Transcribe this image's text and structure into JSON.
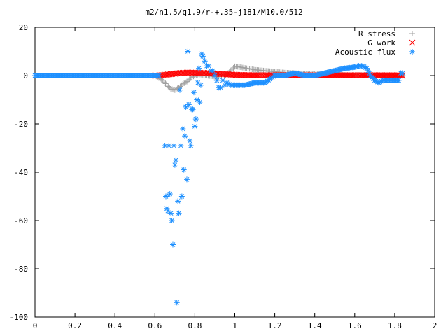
{
  "chart_data": {
    "type": "scatter",
    "title": "m2/n1.5/q1.9/r-+.35-j181/M10.0/512",
    "xlabel": "",
    "ylabel": "",
    "xlim": [
      0,
      2
    ],
    "ylim": [
      -100,
      20
    ],
    "x_ticks": [
      "0",
      "0.2",
      "0.4",
      "0.6",
      "0.8",
      "1",
      "1.2",
      "1.4",
      "1.6",
      "1.8",
      "2"
    ],
    "y_ticks": [
      "20",
      "0",
      "-20",
      "-40",
      "-60",
      "-80",
      "-100"
    ],
    "grid": false,
    "legend_position": "top-right",
    "series": [
      {
        "name": "R stress",
        "marker": "plus",
        "color": "#a0a0a0",
        "x": [
          0.0,
          0.1,
          0.2,
          0.3,
          0.4,
          0.5,
          0.6,
          0.64,
          0.66,
          0.68,
          0.7,
          0.72,
          0.74,
          0.76,
          0.78,
          0.8,
          0.82,
          0.84,
          0.86,
          0.88,
          0.9,
          0.92,
          0.94,
          0.96,
          0.98,
          1.0,
          1.02,
          1.04,
          1.06,
          1.08,
          1.1,
          1.15,
          1.2,
          1.25,
          1.3,
          1.35,
          1.4,
          1.45,
          1.5,
          1.55,
          1.6,
          1.65,
          1.7,
          1.75,
          1.8,
          1.84
        ],
        "y": [
          0,
          0,
          0,
          0,
          0,
          0,
          0,
          -2,
          -4,
          -5.5,
          -6,
          -5,
          -3.5,
          -2.5,
          -1,
          0,
          0.5,
          0.3,
          0,
          -0.2,
          -0.5,
          -0.5,
          0,
          0.5,
          2,
          3.8,
          3.6,
          3.3,
          3.0,
          2.7,
          2.4,
          2.0,
          1.6,
          1.2,
          1.0,
          0.8,
          0.6,
          0.4,
          0.3,
          0.2,
          0.1,
          0.1,
          0,
          0,
          0,
          0
        ]
      },
      {
        "name": "G work",
        "marker": "cross",
        "color": "#ff0000",
        "x": [
          0.6,
          0.62,
          0.64,
          0.66,
          0.68,
          0.7,
          0.72,
          0.74,
          0.76,
          0.78,
          0.8,
          0.82,
          0.84,
          0.86,
          0.88,
          0.9,
          0.92,
          0.94,
          0.96,
          0.98,
          1.0,
          1.03,
          1.06,
          1.09,
          1.12,
          1.15,
          1.18,
          1.21,
          1.24,
          1.27,
          1.3,
          1.33,
          1.36,
          1.39,
          1.42,
          1.45,
          1.48,
          1.51,
          1.54,
          1.57,
          1.6,
          1.63,
          1.66,
          1.69,
          1.72,
          1.75,
          1.78,
          1.81,
          1.84
        ],
        "y": [
          0,
          0,
          0.2,
          0.4,
          0.6,
          0.8,
          1.0,
          1.1,
          1.2,
          1.2,
          1.2,
          1.1,
          1.1,
          1.0,
          0.9,
          0.8,
          0.7,
          0.6,
          0.5,
          0.4,
          0.3,
          0.2,
          0.2,
          0.1,
          0.1,
          0.1,
          0.1,
          0.1,
          0.1,
          0.1,
          0.1,
          0.1,
          0.1,
          0.1,
          0.1,
          0.1,
          0.1,
          0.1,
          0.1,
          0.1,
          0.1,
          0.1,
          0.1,
          0.1,
          0.1,
          0.1,
          0.1,
          0.1,
          0
        ]
      },
      {
        "name": "Acoustic flux",
        "marker": "star",
        "color": "#1e90ff",
        "x": [
          0.0,
          0.05,
          0.1,
          0.15,
          0.2,
          0.25,
          0.3,
          0.35,
          0.4,
          0.45,
          0.5,
          0.55,
          0.6,
          0.62,
          0.65,
          0.655,
          0.66,
          0.665,
          0.67,
          0.675,
          0.68,
          0.685,
          0.69,
          0.695,
          0.7,
          0.705,
          0.71,
          0.715,
          0.72,
          0.725,
          0.73,
          0.735,
          0.74,
          0.745,
          0.75,
          0.755,
          0.76,
          0.765,
          0.77,
          0.775,
          0.78,
          0.785,
          0.79,
          0.795,
          0.8,
          0.805,
          0.81,
          0.815,
          0.82,
          0.825,
          0.83,
          0.835,
          0.84,
          0.85,
          0.86,
          0.87,
          0.88,
          0.89,
          0.9,
          0.91,
          0.92,
          0.93,
          0.94,
          0.95,
          0.96,
          0.98,
          1.0,
          1.05,
          1.1,
          1.15,
          1.2,
          1.25,
          1.3,
          1.35,
          1.4,
          1.45,
          1.5,
          1.55,
          1.6,
          1.62,
          1.64,
          1.66,
          1.68,
          1.7,
          1.72,
          1.74,
          1.76,
          1.78,
          1.8,
          1.82,
          1.83,
          1.84
        ],
        "y": [
          0,
          0,
          0,
          0,
          0,
          0,
          0,
          0,
          0,
          0,
          0,
          0,
          0,
          0,
          -29,
          -50,
          -55,
          -56,
          -29,
          -49,
          -57,
          -60,
          -70,
          -29,
          -37,
          -35,
          -94,
          -52,
          -57,
          -6,
          -29,
          -50,
          -22,
          -39,
          -25,
          -13,
          -43,
          10,
          -12,
          -27,
          -29,
          -14,
          -14,
          -7,
          -21,
          -18,
          -10,
          -3,
          3,
          -11,
          -4,
          9,
          8,
          6,
          4,
          4,
          2,
          2,
          0,
          -2,
          -5,
          -5,
          -2,
          -4,
          -3,
          -4,
          -4,
          -4,
          -3,
          -3,
          0,
          0,
          1,
          0,
          0,
          1,
          2,
          3,
          3.5,
          4,
          4,
          3,
          0,
          -2,
          -3,
          -2,
          -2,
          -2,
          -2,
          -2,
          1,
          1
        ]
      }
    ]
  }
}
